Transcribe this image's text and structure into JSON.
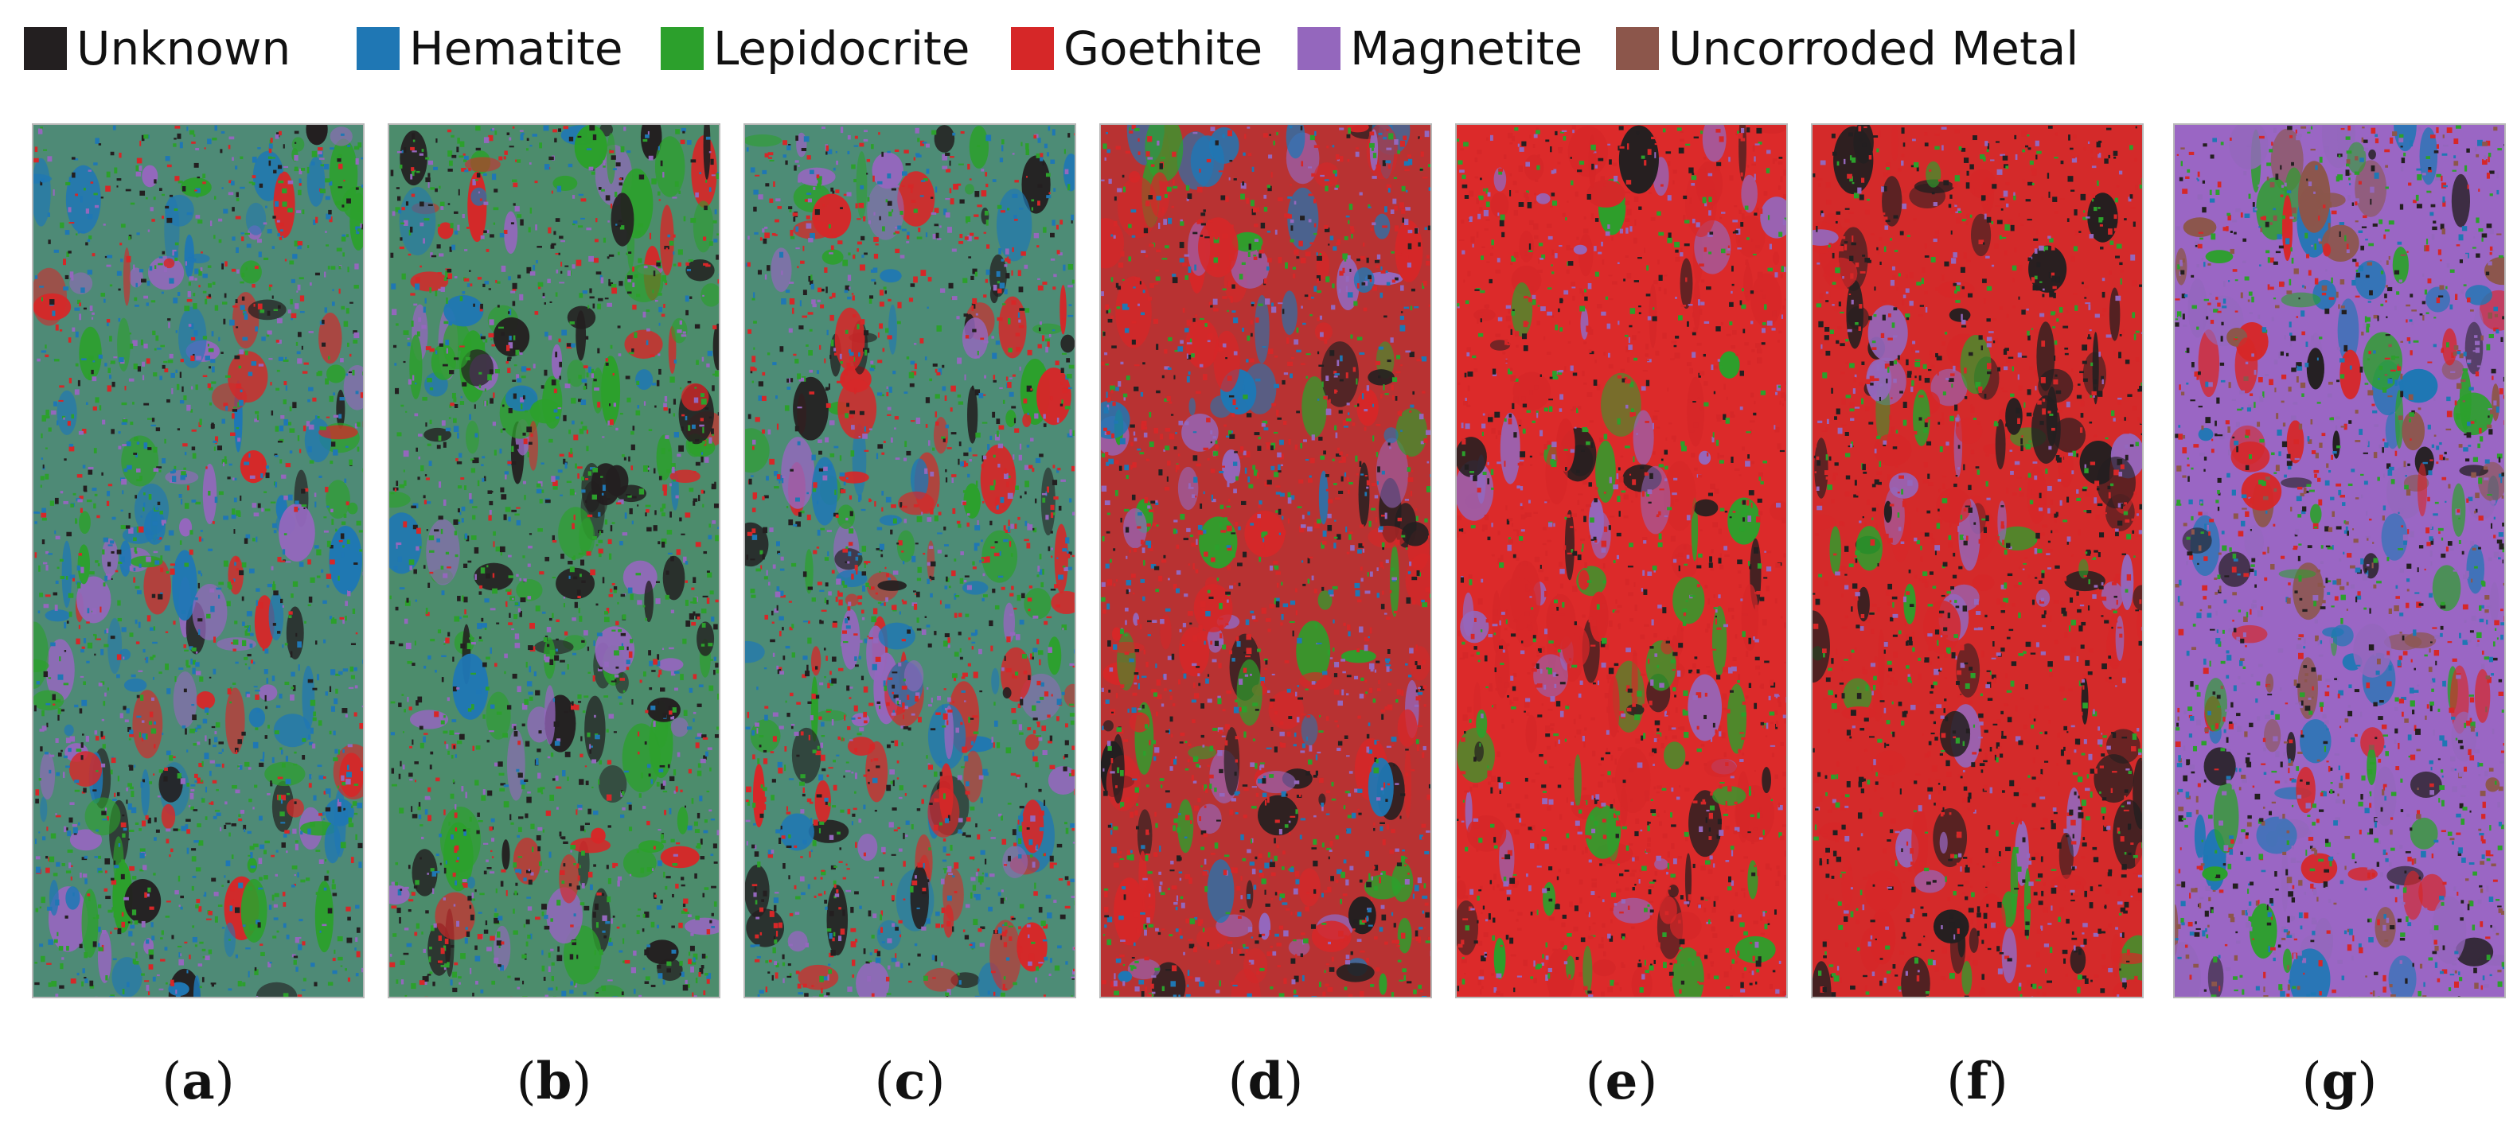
{
  "legend": {
    "items": [
      {
        "label": "Unknown",
        "color": "#231f20"
      },
      {
        "label": "Hematite",
        "color": "#1f77b4"
      },
      {
        "label": "Lepidocrite",
        "color": "#2ca02c"
      },
      {
        "label": "Goethite",
        "color": "#d62728"
      },
      {
        "label": "Magnetite",
        "color": "#9467bd"
      },
      {
        "label": "Uncorroded Metal",
        "color": "#8c564b"
      }
    ]
  },
  "panels": [
    {
      "label": "a",
      "base_color": "#4e8a76",
      "dominant": "Lepidocrite/Hematite",
      "colors": [
        "#1f77b4",
        "#2ca02c",
        "#2ca02c",
        "#1f77b4",
        "#d62728",
        "#231f20",
        "#9467bd"
      ]
    },
    {
      "label": "b",
      "base_color": "#4c8c6c",
      "dominant": "Lepidocrite/Hematite",
      "colors": [
        "#2ca02c",
        "#1f77b4",
        "#2ca02c",
        "#231f20",
        "#d62728",
        "#231f20",
        "#9467bd"
      ]
    },
    {
      "label": "c",
      "base_color": "#4d8c76",
      "dominant": "Lepidocrite/Hematite with Goethite veins",
      "colors": [
        "#2ca02c",
        "#1f77b4",
        "#d62728",
        "#d62728",
        "#9467bd",
        "#231f20"
      ]
    },
    {
      "label": "d",
      "base_color": "#b83232",
      "dominant": "Goethite mixed",
      "colors": [
        "#d62728",
        "#231f20",
        "#2ca02c",
        "#1f77b4",
        "#9467bd",
        "#d62728"
      ]
    },
    {
      "label": "e",
      "base_color": "#dc2a2a",
      "dominant": "Goethite",
      "colors": [
        "#d62728",
        "#d62728",
        "#231f20",
        "#9467bd",
        "#2ca02c",
        "#d62728"
      ]
    },
    {
      "label": "f",
      "base_color": "#d42a2a",
      "dominant": "Goethite/Unknown",
      "colors": [
        "#d62728",
        "#231f20",
        "#231f20",
        "#2ca02c",
        "#9467bd",
        "#d62728"
      ]
    },
    {
      "label": "g",
      "base_color": "#9a66c4",
      "dominant": "Magnetite",
      "colors": [
        "#9467bd",
        "#8c564b",
        "#d62728",
        "#231f20",
        "#2ca02c",
        "#1f77b4"
      ]
    }
  ]
}
